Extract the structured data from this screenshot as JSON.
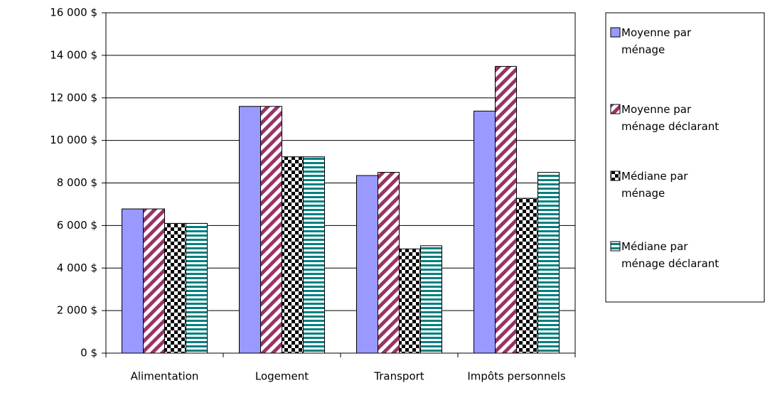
{
  "chart_data": {
    "type": "bar",
    "categories": [
      "Alimentation",
      "Logement",
      "Transport",
      "Impôts personnels"
    ],
    "series": [
      {
        "name": "Moyenne par ménage",
        "color": "#9999ff",
        "pattern": "solid",
        "values": [
          6780,
          11600,
          8350,
          11380
        ]
      },
      {
        "name": "Moyenne par ménage déclarant",
        "color": "#993366",
        "pattern": "diagonal",
        "values": [
          6780,
          11600,
          8500,
          13480
        ]
      },
      {
        "name": "Médiane par ménage",
        "color": "#000000",
        "pattern": "checker",
        "values": [
          6100,
          9230,
          4900,
          7280
        ]
      },
      {
        "name": "Médiane par ménage déclarant",
        "color": "#008080",
        "pattern": "horizontal",
        "values": [
          6100,
          9230,
          5050,
          8500
        ]
      }
    ],
    "ylim": [
      0,
      16000
    ],
    "yticks": [
      {
        "value": 0,
        "label": "0 $"
      },
      {
        "value": 2000,
        "label": "2 000 $"
      },
      {
        "value": 4000,
        "label": "4 000 $"
      },
      {
        "value": 6000,
        "label": "6 000 $"
      },
      {
        "value": 8000,
        "label": "8 000 $"
      },
      {
        "value": 10000,
        "label": "10 000 $"
      },
      {
        "value": 12000,
        "label": "12 000 $"
      },
      {
        "value": 14000,
        "label": "14 000 $"
      },
      {
        "value": 16000,
        "label": "16 000 $"
      }
    ],
    "grid": true,
    "legend": "right"
  }
}
